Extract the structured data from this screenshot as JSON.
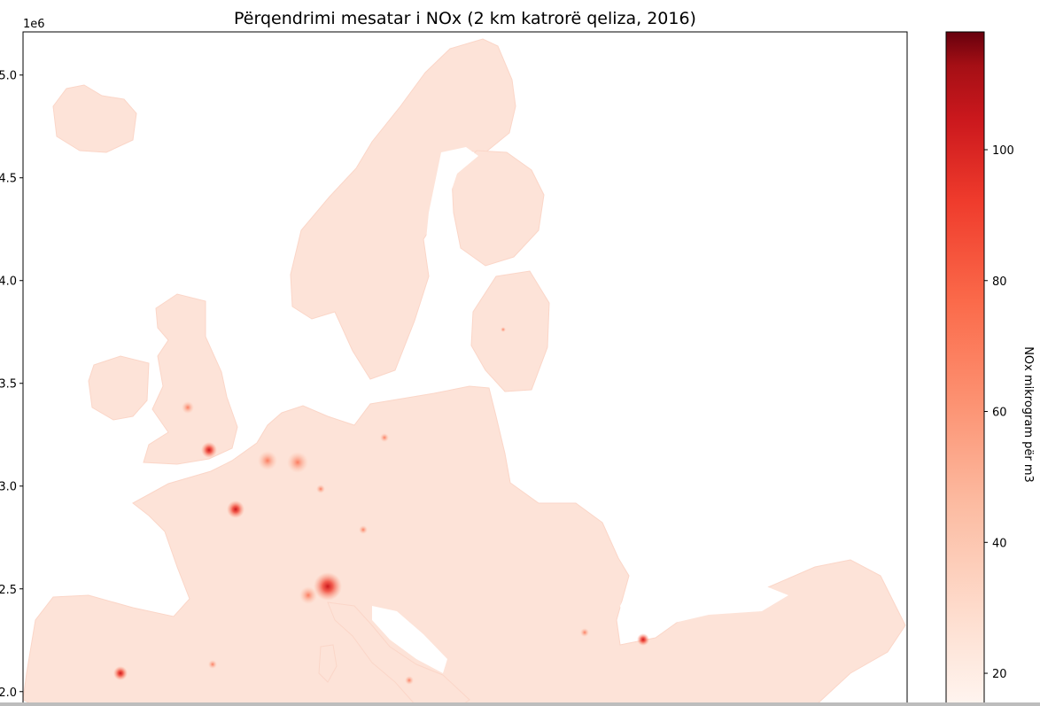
{
  "chart_data": {
    "type": "heatmap",
    "title": "Përqendrimi mesatar i NOx (2 km katrorë qeliza, 2016)",
    "y_axis": {
      "offset_label": "1e6",
      "ticks": [
        {
          "value": 5.0,
          "label": "5.0"
        },
        {
          "value": 4.5,
          "label": "4.5"
        },
        {
          "value": 4.0,
          "label": "4.0"
        },
        {
          "value": 3.5,
          "label": "3.5"
        },
        {
          "value": 3.0,
          "label": "3.0"
        },
        {
          "value": 2.5,
          "label": "2.5"
        },
        {
          "value": 2.0,
          "label": "2.0"
        }
      ],
      "range": [
        1.93,
        5.21
      ]
    },
    "colorbar": {
      "label": "NOx mikrogram për m3",
      "colormap": "Reds",
      "range": [
        15,
        118
      ],
      "ticks": [
        {
          "value": 20,
          "label": "20"
        },
        {
          "value": 40,
          "label": "40"
        },
        {
          "value": 60,
          "label": "60"
        },
        {
          "value": 80,
          "label": "80"
        },
        {
          "value": 100,
          "label": "100"
        }
      ]
    },
    "colors": {
      "low": "#fff5f0",
      "base_land": "#fde3d8",
      "mid": "#fb6a4a",
      "high": "#cb181d",
      "max": "#67000d"
    }
  }
}
